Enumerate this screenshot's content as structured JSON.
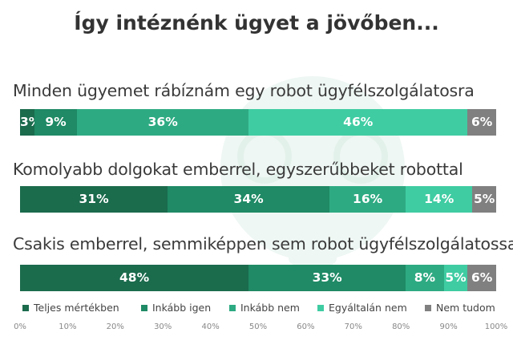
{
  "chart_data": {
    "type": "bar",
    "orientation": "horizontal",
    "stacked": true,
    "title": "Így intéznénk ügyet a jövőben...",
    "categories": [
      "Minden ügyemet rábíznám egy robot ügyfélszolgálatosra",
      "Komolyabb dolgokat emberrel, egyszerűbbeket robottal",
      "Csakis emberrel, semmiképpen sem robot ügyfélszolgálatossal"
    ],
    "series": [
      {
        "name": "Teljes mértékben",
        "color": "#1b6b4d",
        "values": [
          3,
          31,
          48
        ],
        "labels": [
          "3%",
          "31%",
          "48%"
        ]
      },
      {
        "name": "Inkább igen",
        "color": "#1f8a65",
        "values": [
          9,
          34,
          33
        ],
        "labels": [
          "9%",
          "34%",
          "33%"
        ]
      },
      {
        "name": "Inkább nem",
        "color": "#2eaa82",
        "values": [
          36,
          16,
          8
        ],
        "labels": [
          "36%",
          "16%",
          "8%"
        ]
      },
      {
        "name": "Egyáltalán nem",
        "color": "#3fcca2",
        "values": [
          46,
          14,
          5
        ],
        "labels": [
          "46%",
          "14%",
          "5%"
        ]
      },
      {
        "name": "Nem tudom",
        "color": "#808080",
        "values": [
          6,
          5,
          6
        ],
        "labels": [
          "6%",
          "5%",
          "6%"
        ]
      }
    ],
    "xlim": [
      0,
      100
    ],
    "x_ticks": [
      "0%",
      "10%",
      "20%",
      "30%",
      "40%",
      "50%",
      "60%",
      "70%",
      "80%",
      "90%",
      "100%"
    ],
    "legend_position": "bottom",
    "grid": false
  }
}
